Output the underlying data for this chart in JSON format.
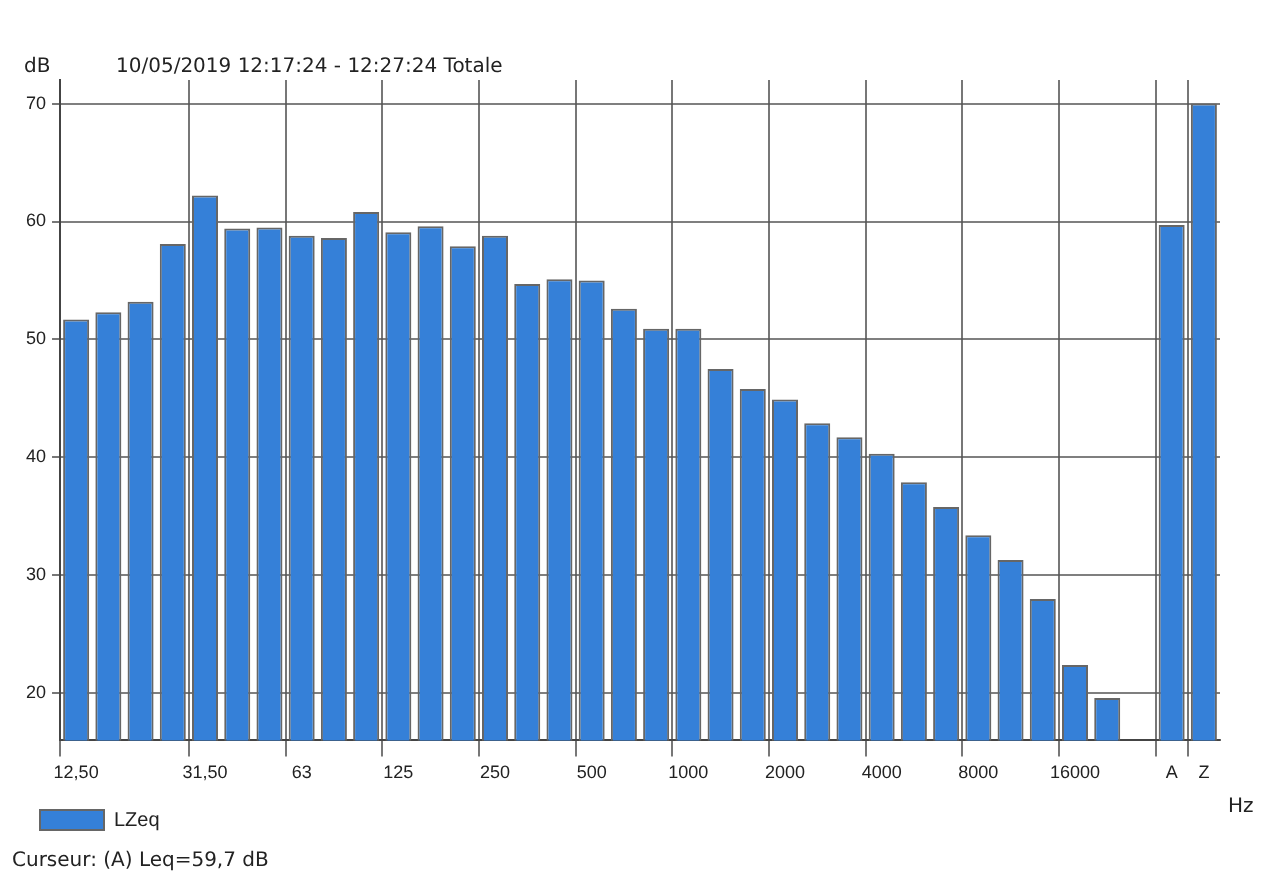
{
  "chart_data": {
    "type": "bar",
    "subtitle": "10/05/2019 12:17:24 - 12:27:24  Totale",
    "ylabel": "dB",
    "xlabel": "Hz",
    "categories": [
      "12,50",
      null,
      null,
      null,
      "31,50",
      null,
      null,
      "63",
      null,
      null,
      "125",
      null,
      null,
      "250",
      null,
      null,
      "500",
      null,
      null,
      "1000",
      null,
      null,
      "2000",
      null,
      null,
      "4000",
      null,
      null,
      "8000",
      null,
      null,
      "16000",
      null,
      null,
      "A",
      "Z"
    ],
    "series": [
      {
        "name": "LZeq",
        "color": "#3580d8",
        "values": [
          51.7,
          52.3,
          53.2,
          58.1,
          62.2,
          59.4,
          59.5,
          58.8,
          58.6,
          60.8,
          59.1,
          59.6,
          57.9,
          58.8,
          54.7,
          55.1,
          55.0,
          52.6,
          50.9,
          50.9,
          47.5,
          45.8,
          44.9,
          42.9,
          41.7,
          40.3,
          37.9,
          35.8,
          33.4,
          31.3,
          28.0,
          22.4,
          19.6,
          null,
          59.7,
          70.0
        ]
      }
    ],
    "ylim": [
      16,
      72
    ],
    "yticks": [
      20,
      30,
      40,
      50,
      60,
      70
    ],
    "grid": true,
    "legend": "bottom left",
    "annotations": [
      "Curseur: (A) Leq=59,7 dB"
    ]
  }
}
